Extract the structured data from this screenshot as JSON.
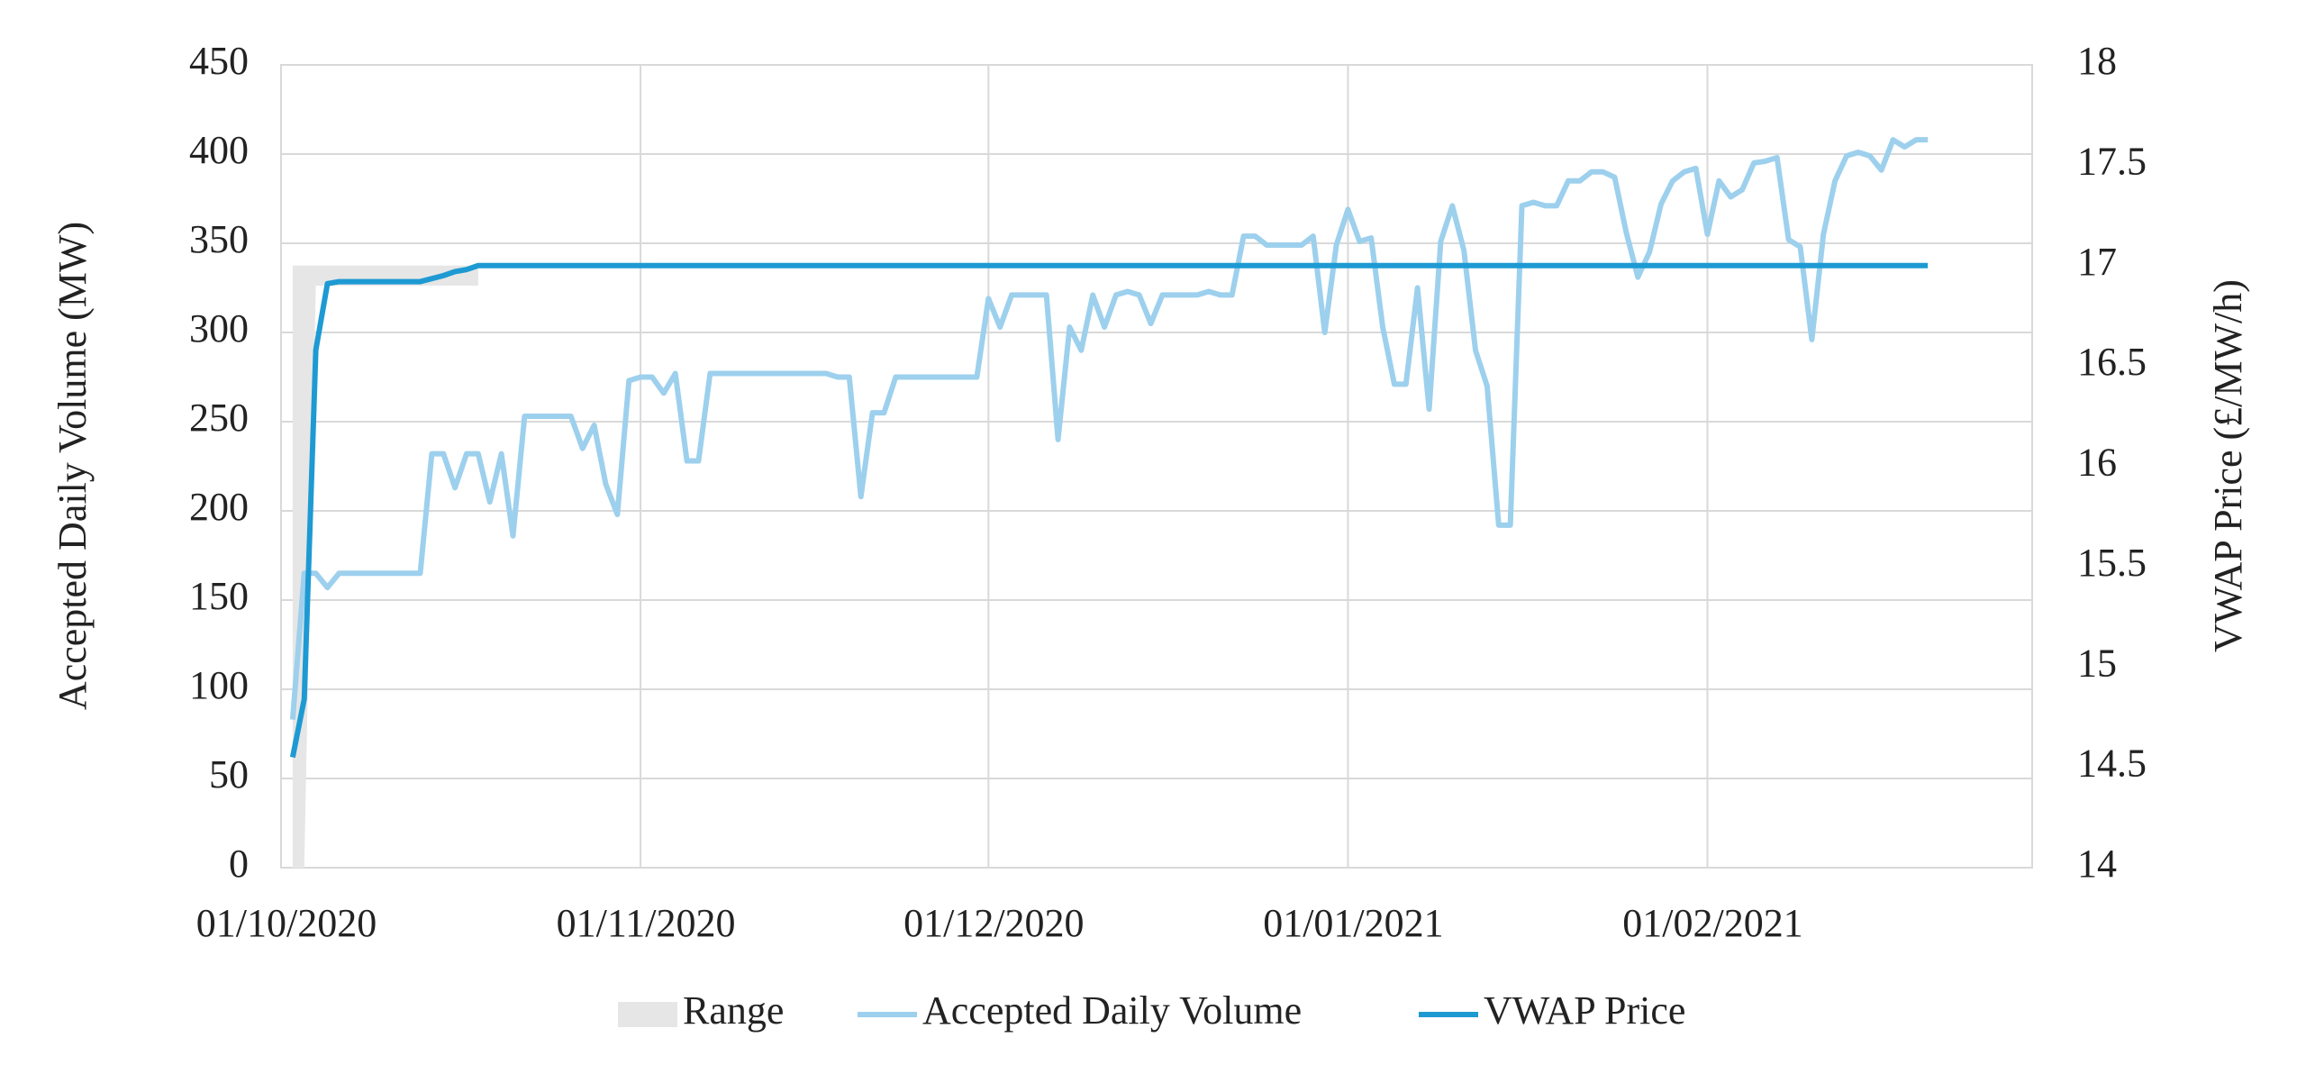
{
  "chart_data": {
    "type": "line",
    "y_label": "Accepted Daily Volume (MW)",
    "y2_label": "VWAP Price (£/MW/h)",
    "xlim": [
      "2020-10-01",
      "2021-03-01"
    ],
    "xticks": [
      {
        "value": "2020-10-01",
        "label": "01/10/2020"
      },
      {
        "value": "2020-11-01",
        "label": "01/11/2020"
      },
      {
        "value": "2020-12-01",
        "label": "01/12/2020"
      },
      {
        "value": "2021-01-01",
        "label": "01/01/2021"
      },
      {
        "value": "2021-02-01",
        "label": "01/02/2021"
      }
    ],
    "ylim": [
      0,
      450
    ],
    "yticks": [
      0,
      50,
      100,
      150,
      200,
      250,
      300,
      350,
      400,
      450
    ],
    "y2lim": [
      14,
      18
    ],
    "y2ticks": [
      14,
      14.5,
      15,
      15.5,
      16,
      16.5,
      17,
      17.5,
      18
    ],
    "grid": true,
    "legend": "bottom",
    "series": [
      {
        "name": "Range",
        "type": "range",
        "axis": "y2",
        "color": "#e6e6e6",
        "x": [
          "2020-10-02",
          "2020-10-03",
          "2020-10-04",
          "2020-10-18"
        ],
        "low": [
          14,
          14,
          16.9,
          16.9
        ],
        "high": [
          17,
          17,
          17,
          17
        ]
      },
      {
        "name": "Accepted Daily Volume",
        "color": "#9dd0ed",
        "x": [
          "2020-10-02",
          "2020-10-03",
          "2020-10-04",
          "2020-10-05",
          "2020-10-06",
          "2020-10-13",
          "2020-10-14",
          "2020-10-15",
          "2020-10-16",
          "2020-10-17",
          "2020-10-18",
          "2020-10-19",
          "2020-10-20",
          "2020-10-21",
          "2020-10-22",
          "2020-10-26",
          "2020-10-27",
          "2020-10-28",
          "2020-10-29",
          "2020-10-30",
          "2020-10-31",
          "2020-11-01",
          "2020-11-02",
          "2020-11-03",
          "2020-11-04",
          "2020-11-05",
          "2020-11-06",
          "2020-11-07",
          "2020-11-17",
          "2020-11-18",
          "2020-11-19",
          "2020-11-20",
          "2020-11-21",
          "2020-11-22",
          "2020-11-23",
          "2020-11-30",
          "2020-12-01",
          "2020-12-02",
          "2020-12-03",
          "2020-12-06",
          "2020-12-07",
          "2020-12-08",
          "2020-12-09",
          "2020-12-10",
          "2020-12-11",
          "2020-12-12",
          "2020-12-13",
          "2020-12-14",
          "2020-12-15",
          "2020-12-16",
          "2020-12-19",
          "2020-12-20",
          "2020-12-21",
          "2020-12-22",
          "2020-12-23",
          "2020-12-24",
          "2020-12-25",
          "2020-12-28",
          "2020-12-29",
          "2020-12-30",
          "2020-12-31",
          "2021-01-01",
          "2021-01-02",
          "2021-01-03",
          "2021-01-04",
          "2021-01-05",
          "2021-01-06",
          "2021-01-07",
          "2021-01-08",
          "2021-01-09",
          "2021-01-10",
          "2021-01-11",
          "2021-01-12",
          "2021-01-13",
          "2021-01-14",
          "2021-01-15",
          "2021-01-16",
          "2021-01-17",
          "2021-01-18",
          "2021-01-19",
          "2021-01-20",
          "2021-01-21",
          "2021-01-22",
          "2021-01-23",
          "2021-01-24",
          "2021-01-25",
          "2021-01-26",
          "2021-01-27",
          "2021-01-28",
          "2021-01-29",
          "2021-01-30",
          "2021-01-31",
          "2021-02-01",
          "2021-02-02",
          "2021-02-03",
          "2021-02-04",
          "2021-02-05",
          "2021-02-06",
          "2021-02-07",
          "2021-02-08",
          "2021-02-09",
          "2021-02-10",
          "2021-02-11",
          "2021-02-12",
          "2021-02-13",
          "2021-02-14",
          "2021-02-15",
          "2021-02-16",
          "2021-02-17",
          "2021-02-18",
          "2021-02-19",
          "2021-02-20"
        ],
        "values": [
          83,
          165,
          165,
          157,
          165,
          165,
          232,
          232,
          213,
          232,
          232,
          205,
          232,
          186,
          253,
          253,
          235,
          248,
          215,
          198,
          273,
          275,
          275,
          266,
          277,
          228,
          228,
          277,
          277,
          275,
          275,
          208,
          255,
          255,
          275,
          275,
          319,
          303,
          321,
          321,
          240,
          303,
          290,
          321,
          303,
          321,
          323,
          321,
          305,
          321,
          321,
          323,
          321,
          321,
          354,
          354,
          349,
          349,
          354,
          300,
          349,
          369,
          351,
          353,
          303,
          271,
          271,
          325,
          257,
          351,
          371,
          346,
          290,
          270,
          192,
          192,
          371,
          373,
          371,
          371,
          385,
          385,
          390,
          390,
          387,
          356,
          331,
          345,
          372,
          385,
          390,
          392,
          355,
          385,
          376,
          380,
          395,
          396,
          398,
          352,
          348,
          296,
          355,
          385,
          399,
          401,
          399,
          391,
          408,
          404,
          408,
          408
        ]
      },
      {
        "name": "VWAP Price",
        "axis": "y2",
        "color": "#1e9ad3",
        "x": [
          "2020-10-02",
          "2020-10-03",
          "2020-10-04",
          "2020-10-05",
          "2020-10-06",
          "2020-10-13",
          "2020-10-15",
          "2020-10-16",
          "2020-10-17",
          "2020-10-18",
          "2021-02-20"
        ],
        "values": [
          14.55,
          14.84,
          16.58,
          16.91,
          16.92,
          16.92,
          16.95,
          16.97,
          16.98,
          17,
          17
        ]
      }
    ]
  }
}
